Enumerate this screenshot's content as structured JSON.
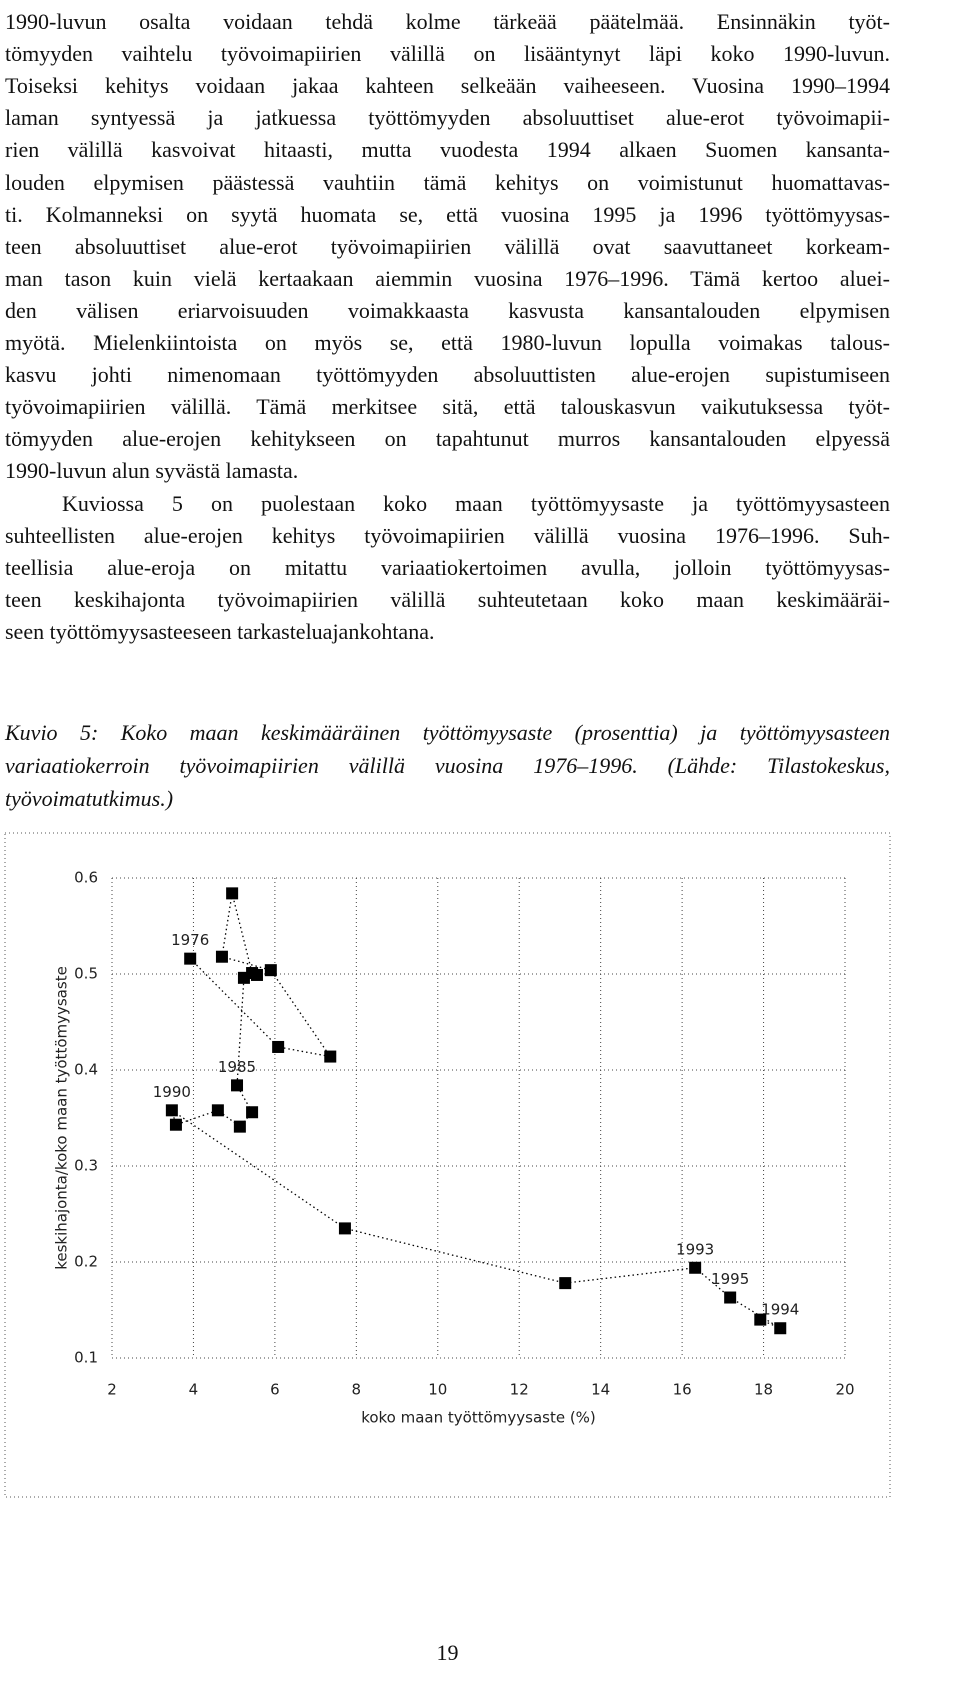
{
  "paragraphs": [
    [
      "1990-luvun osalta voidaan tehdä kolme tärkeää päätelmää. Ensinnäkin työt-",
      "tömyyden vaihtelu työvoimapiirien välillä on lisääntynyt läpi koko 1990-luvun.",
      "Toiseksi kehitys voidaan jakaa kahteen selkeään vaiheeseen. Vuosina 1990–1994",
      "laman syntyessä ja jatkuessa työttömyyden absoluuttiset alue-erot työvoimapii-",
      "rien välillä kasvoivat hitaasti, mutta vuodesta 1994 alkaen Suomen kansanta-",
      "louden elpymisen päästessä vauhtiin tämä kehitys on voimistunut huomattavas-",
      "ti. Kolmanneksi on syytä huomata se, että vuosina 1995 ja 1996 työttömyysas-",
      "teen absoluuttiset alue-erot työvoimapiirien välillä ovat saavuttaneet korkeam-",
      "man tason kuin vielä kertaakaan aiemmin vuosina 1976–1996. Tämä kertoo aluei-",
      "den välisen eriarvoisuuden voimakkaasta kasvusta kansantalouden elpymisen",
      "myötä. Mielenkiintoista on myös se, että 1980-luvun lopulla voimakas talous-",
      "kasvu johti nimenomaan työttömyyden absoluuttisten alue-erojen supistumiseen",
      "työvoimapiirien välillä. Tämä merkitsee sitä, että talouskasvun vaikutuksessa työt-",
      "tömyyden alue-erojen kehitykseen on tapahtunut murros kansantalouden elpyessä",
      "1990-luvun alun syvästä lamasta."
    ],
    [
      "Kuviossa 5 on puolestaan koko maan työttömyysaste ja työttömyysasteen",
      "suhteellisten alue-erojen kehitys työvoimapiirien välillä vuosina 1976–1996. Suh-",
      "teellisia alue-eroja on mitattu variaatiokertoimen avulla, jolloin työttömyysas-",
      "teen keskihajonta työvoimapiirien välillä suhteutetaan koko maan keskimääräi-",
      "seen työttömyysasteeseen tarkasteluajankohtana."
    ]
  ],
  "caption": [
    "Kuvio 5: Koko maan keskimääräinen työttömyysaste (prosenttia) ja työttömyysasteen",
    "variaatiokerroin työvoimapiirien välillä vuosina 1976–1996. (Lähde: Tilastokeskus,",
    "työvoimatutkimus.)"
  ],
  "chart_data": {
    "type": "line",
    "x_label": "koko maan työttömyysaste (%)",
    "y_label": "keskihajonta/koko maan työttömyysaste",
    "x": [
      3.92,
      6.08,
      7.36,
      5.9,
      4.7,
      4.95,
      5.44,
      5.56,
      5.24,
      5.07,
      5.44,
      5.14,
      4.6,
      3.57,
      3.47,
      7.72,
      13.13,
      16.32,
      17.18,
      18.41,
      17.92
    ],
    "values": [
      0.516,
      0.424,
      0.414,
      0.504,
      0.518,
      0.584,
      0.501,
      0.499,
      0.496,
      0.384,
      0.356,
      0.341,
      0.358,
      0.343,
      0.358,
      0.235,
      0.178,
      0.194,
      0.163,
      0.131,
      0.14
    ],
    "point_labels": [
      "1976",
      null,
      null,
      null,
      null,
      null,
      null,
      null,
      null,
      "1985",
      null,
      null,
      null,
      null,
      "1990",
      null,
      null,
      "1993",
      "1995",
      "1994",
      null
    ],
    "color": "#000000",
    "xlim": [
      2,
      20
    ],
    "xticks": [
      2,
      4,
      6,
      8,
      10,
      12,
      14,
      16,
      18,
      20
    ],
    "ylim": [
      0.1,
      0.6
    ],
    "yticks": [
      0.1,
      0.2,
      0.3,
      0.4,
      0.5,
      0.6
    ],
    "grid": true
  },
  "page_number": "19"
}
